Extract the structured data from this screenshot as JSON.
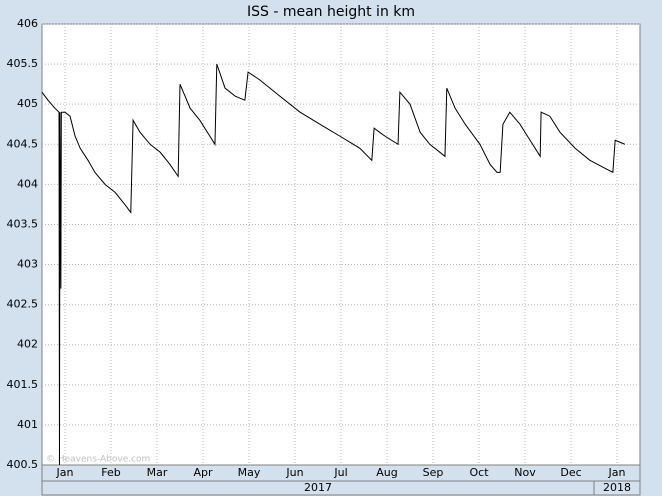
{
  "chart_data": {
    "type": "line",
    "title": "ISS - mean height in km",
    "watermark": "© Heavens-Above.com",
    "xlim": [
      0,
      13
    ],
    "xticks": [
      {
        "value": 0.5,
        "label": "Jan"
      },
      {
        "value": 1.5,
        "label": "Feb"
      },
      {
        "value": 2.5,
        "label": "Mar"
      },
      {
        "value": 3.5,
        "label": "Apr"
      },
      {
        "value": 4.5,
        "label": "May"
      },
      {
        "value": 5.5,
        "label": "Jun"
      },
      {
        "value": 6.5,
        "label": "Jul"
      },
      {
        "value": 7.5,
        "label": "Aug"
      },
      {
        "value": 8.5,
        "label": "Sep"
      },
      {
        "value": 9.5,
        "label": "Oct"
      },
      {
        "value": 10.5,
        "label": "Nov"
      },
      {
        "value": 11.5,
        "label": "Dec"
      },
      {
        "value": 12.5,
        "label": "Jan"
      }
    ],
    "year_labels": [
      "2017",
      "2018"
    ],
    "ylim": [
      400.5,
      406
    ],
    "yticks": [
      400.5,
      401,
      401.5,
      402,
      402.5,
      403,
      403.5,
      404,
      404.5,
      405,
      405.5,
      406
    ],
    "grid": true,
    "series": [
      {
        "color": "#000000",
        "x": [
          0,
          0.13,
          0.28,
          0.37,
          0.38,
          0.39,
          0.41,
          0.42,
          0.5,
          0.61,
          0.72,
          0.83,
          1.0,
          1.15,
          1.37,
          1.59,
          1.8,
          1.93,
          1.98,
          2.13,
          2.35,
          2.57,
          2.78,
          2.96,
          3.0,
          3.22,
          3.43,
          3.65,
          3.76,
          3.8,
          3.98,
          4.2,
          4.41,
          4.48,
          4.74,
          5.17,
          5.61,
          6.04,
          6.48,
          6.91,
          7.17,
          7.22,
          7.46,
          7.74,
          7.78,
          8.0,
          8.22,
          8.43,
          8.76,
          8.8,
          8.98,
          9.2,
          9.52,
          9.74,
          9.89,
          9.96,
          10.02,
          10.17,
          10.39,
          10.61,
          10.83,
          10.85,
          11.04,
          11.26,
          11.59,
          11.91,
          12.24,
          12.41,
          12.46,
          12.67
        ],
        "values": [
          405.15,
          405.05,
          404.95,
          404.9,
          400.5,
          404.9,
          402.7,
          404.9,
          404.9,
          404.85,
          404.6,
          404.45,
          404.3,
          404.15,
          404.0,
          403.9,
          403.75,
          403.65,
          404.8,
          404.65,
          404.5,
          404.4,
          404.25,
          404.1,
          405.25,
          404.95,
          404.8,
          404.6,
          404.5,
          405.5,
          405.2,
          405.1,
          405.05,
          405.4,
          405.3,
          405.1,
          404.9,
          404.75,
          404.6,
          404.45,
          404.3,
          404.7,
          404.6,
          404.5,
          405.15,
          405.0,
          404.65,
          404.5,
          404.35,
          405.2,
          404.95,
          404.75,
          404.5,
          404.25,
          404.15,
          404.15,
          404.75,
          404.9,
          404.75,
          404.55,
          404.35,
          404.9,
          404.85,
          404.65,
          404.45,
          404.3,
          404.2,
          404.15,
          404.55,
          404.5
        ]
      }
    ]
  }
}
